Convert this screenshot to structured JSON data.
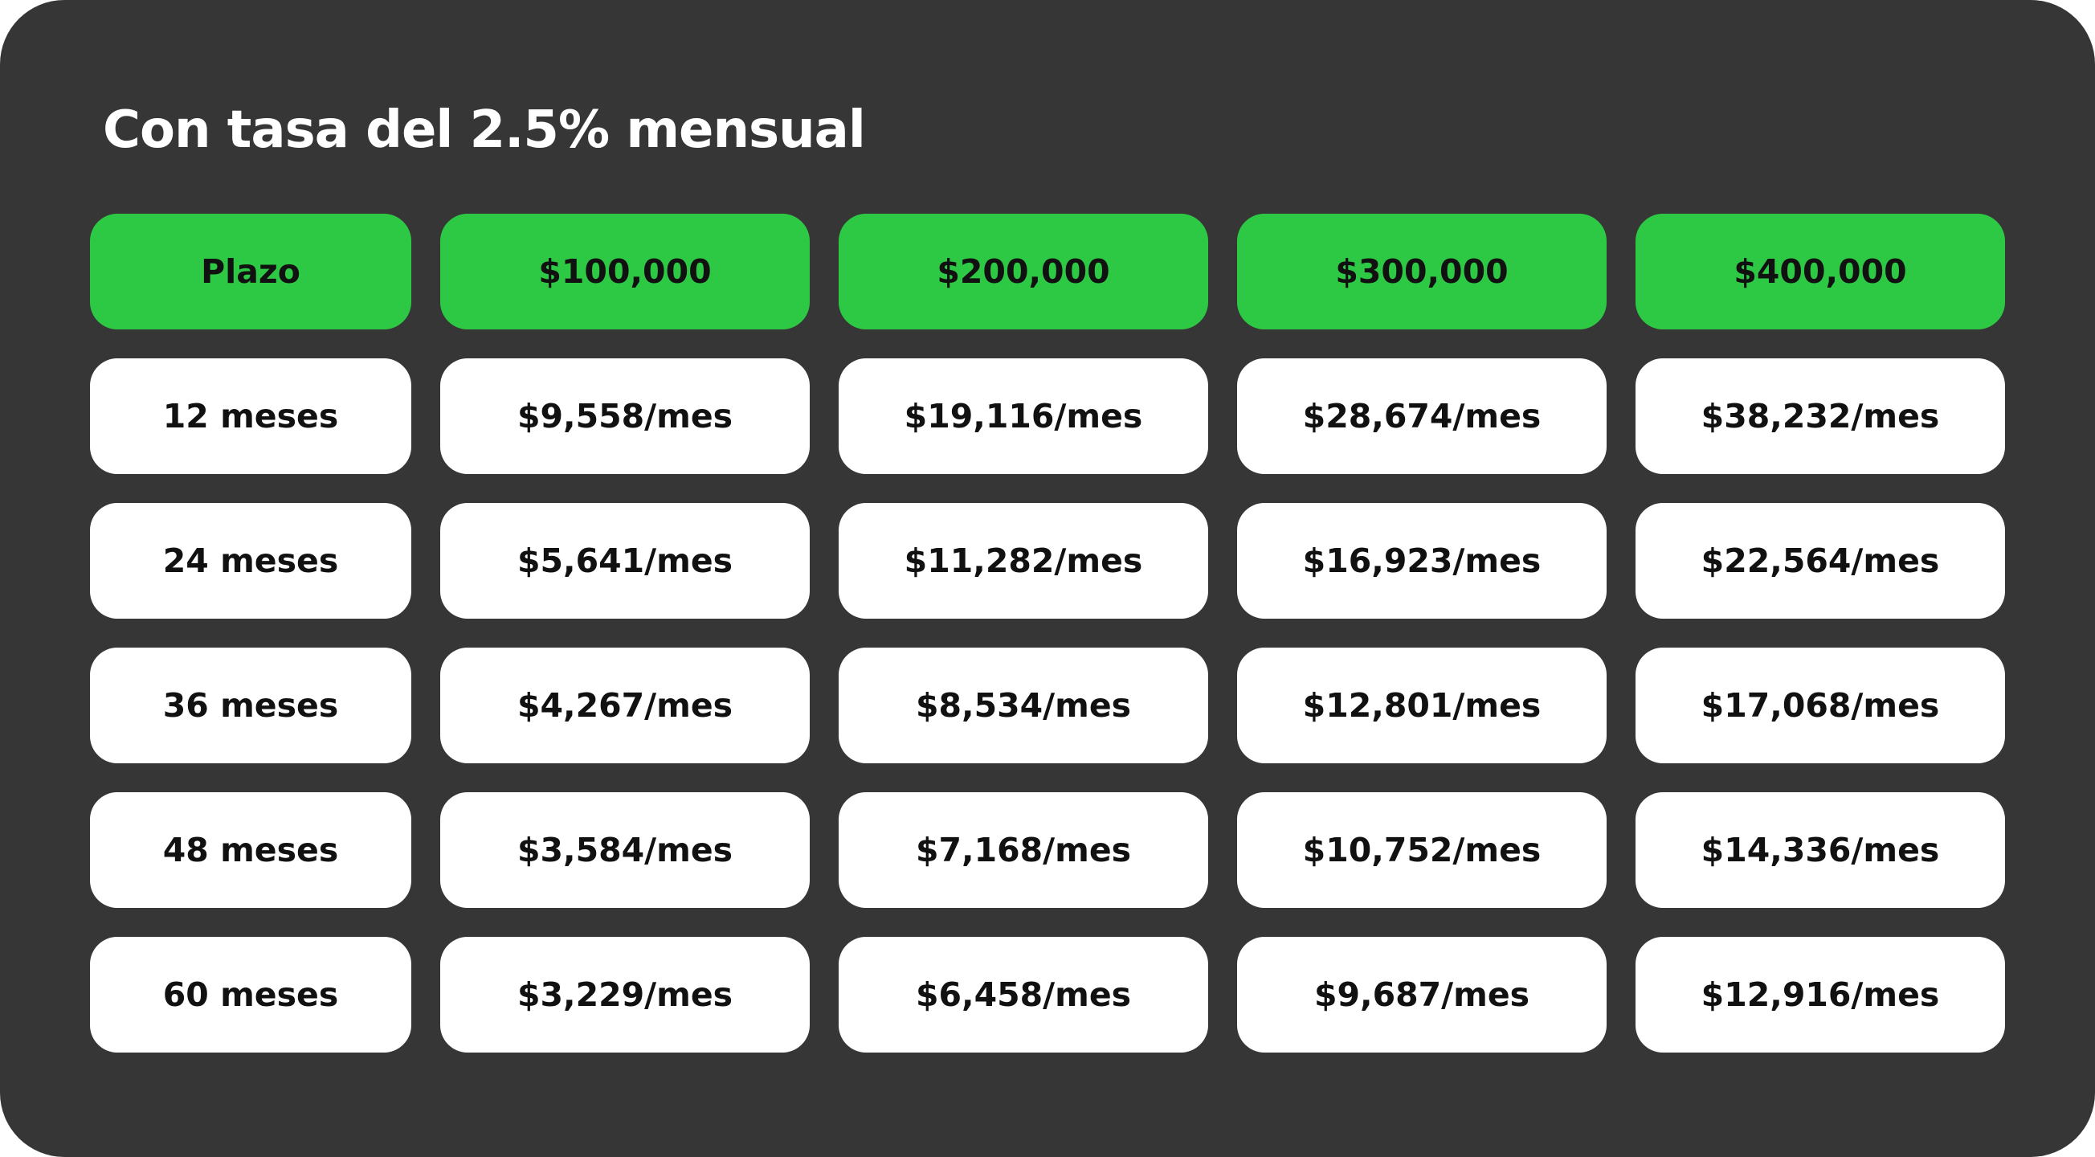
{
  "title": "Con tasa del 2.5% mensual",
  "colors": {
    "panel_background": "#363636",
    "header_background": "#2ec944",
    "cell_background": "#ffffff",
    "title_text": "#ffffff",
    "cell_text": "#111111"
  },
  "table": {
    "headers": [
      "Plazo",
      "$100,000",
      "$200,000",
      "$300,000",
      "$400,000"
    ],
    "rows": [
      [
        "12 meses",
        "$9,558/mes",
        "$19,116/mes",
        "$28,674/mes",
        "$38,232/mes"
      ],
      [
        "24 meses",
        "$5,641/mes",
        "$11,282/mes",
        "$16,923/mes",
        "$22,564/mes"
      ],
      [
        "36 meses",
        "$4,267/mes",
        "$8,534/mes",
        "$12,801/mes",
        "$17,068/mes"
      ],
      [
        "48 meses",
        "$3,584/mes",
        "$7,168/mes",
        "$10,752/mes",
        "$14,336/mes"
      ],
      [
        "60 meses",
        "$3,229/mes",
        "$6,458/mes",
        "$9,687/mes",
        "$12,916/mes"
      ]
    ]
  }
}
